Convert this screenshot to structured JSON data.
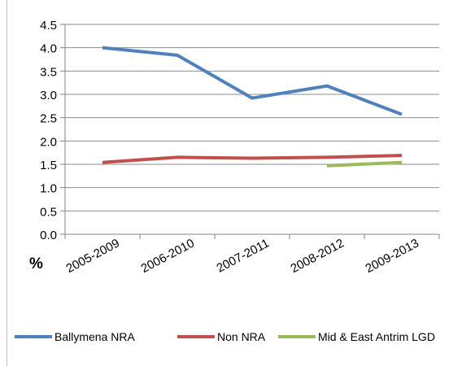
{
  "chart_data": {
    "type": "line",
    "title": "",
    "ylabel": "%",
    "xlabel": "",
    "categories": [
      "2005-2009",
      "2006-2010",
      "2007-2011",
      "2008-2012",
      "2009-2013"
    ],
    "y_ticks": [
      "0.0",
      "0.5",
      "1.0",
      "1.5",
      "2.0",
      "2.5",
      "3.0",
      "3.5",
      "4.0",
      "4.5"
    ],
    "ylim": [
      0,
      4.5
    ],
    "grid": true,
    "legend_position": "bottom",
    "series": [
      {
        "name": "Ballymena NRA",
        "color": "#4f81bd",
        "values": [
          4.0,
          3.84,
          2.92,
          3.18,
          2.57
        ]
      },
      {
        "name": "Non NRA",
        "color": "#c0504d",
        "values": [
          1.54,
          1.65,
          1.63,
          1.65,
          1.69
        ]
      },
      {
        "name": "Mid & East Antrim LGD",
        "color": "#9bbb59",
        "values": [
          null,
          null,
          null,
          1.47,
          1.54
        ]
      }
    ]
  }
}
